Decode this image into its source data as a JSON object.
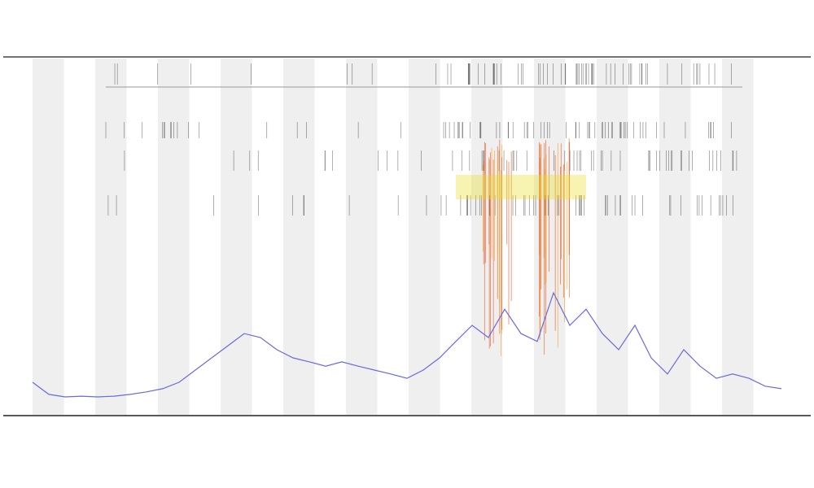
{
  "chart_data": {
    "type": "line",
    "series": [
      {
        "color": "#6a6ae0",
        "values": [
          9.1,
          5.7,
          5,
          5.2,
          5,
          5.2,
          5.7,
          6.4,
          7.3,
          9.1,
          12.5,
          15.9,
          19.3,
          22.7,
          21.6,
          18.2,
          15.9,
          14.8,
          13.6,
          14.8,
          13.6,
          12.5,
          11.4,
          10.2,
          12.5,
          15.9,
          20.5,
          25,
          21.6,
          29.5,
          22.7,
          20.5,
          34.1,
          25,
          29.5,
          22.7,
          18.2,
          25,
          15.9,
          11.4,
          18.2,
          13.6,
          10.2,
          11.4,
          10.2,
          8,
          7.3
        ]
      }
    ],
    "ylim": [
      0,
      100
    ]
  }
}
